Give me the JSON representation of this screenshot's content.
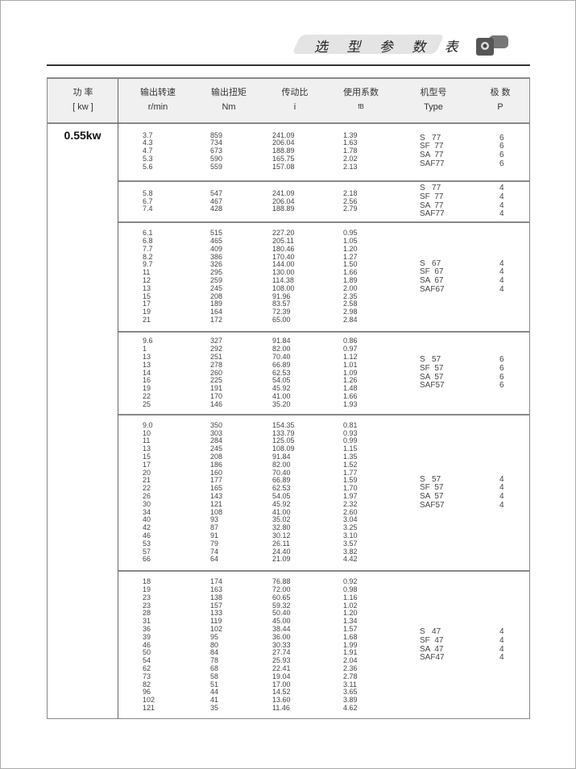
{
  "header": {
    "title": "选 型 参 数 表"
  },
  "columns": [
    {
      "cn": "功 率",
      "en": "[ kw ]"
    },
    {
      "cn": "输出转速",
      "en": "r/min"
    },
    {
      "cn": "输出扭矩",
      "en": "Nm"
    },
    {
      "cn": "传动比",
      "en": "i"
    },
    {
      "cn": "使用系数",
      "en": "fB"
    },
    {
      "cn": "机型号",
      "en": "Type"
    },
    {
      "cn": "极 数",
      "en": "P"
    }
  ],
  "power": "0.55kw",
  "groups": [
    {
      "rows": [
        [
          "3.7",
          "859",
          "241.09",
          "1.39"
        ],
        [
          "4.3",
          "734",
          "206.04",
          "1.63"
        ],
        [
          "4.7",
          "673",
          "188.89",
          "1.78"
        ],
        [
          "5.3",
          "590",
          "165.75",
          "2.02"
        ],
        [
          "5.6",
          "559",
          "157.08",
          "2.13"
        ]
      ],
      "types": [
        "S   77",
        "SF  77",
        "SA  77",
        "SAF77"
      ],
      "poles": [
        "6",
        "6",
        "6",
        "6"
      ]
    },
    {
      "rows": [
        [
          "5.8",
          "547",
          "241.09",
          "2.18"
        ],
        [
          "6.7",
          "467",
          "206.04",
          "2.56"
        ],
        [
          "7.4",
          "428",
          "188.89",
          "2.79"
        ]
      ],
      "types": [
        "S   77",
        "SF  77",
        "SA  77",
        "SAF77"
      ],
      "poles": [
        "4",
        "4",
        "4",
        "4"
      ]
    },
    {
      "rows": [
        [
          "6.1",
          "515",
          "227.20",
          "0.95"
        ],
        [
          "6.8",
          "465",
          "205.11",
          "1.05"
        ],
        [
          "7.7",
          "409",
          "180.46",
          "1.20"
        ],
        [
          "8.2",
          "386",
          "170.40",
          "1.27"
        ],
        [
          "9.7",
          "326",
          "144.00",
          "1.50"
        ],
        [
          "11",
          "295",
          "130.00",
          "1.66"
        ],
        [
          "12",
          "259",
          "114.38",
          "1.89"
        ],
        [
          "13",
          "245",
          "108.00",
          "2.00"
        ],
        [
          "15",
          "208",
          "91.96",
          "2.35"
        ],
        [
          "17",
          "189",
          "83.57",
          "2.58"
        ],
        [
          "19",
          "164",
          "72.39",
          "2.98"
        ],
        [
          "21",
          "172",
          "65.00",
          "2.84"
        ]
      ],
      "types": [
        "S   67",
        "SF  67",
        "SA  67",
        "SAF67"
      ],
      "poles": [
        "4",
        "4",
        "4",
        "4"
      ]
    },
    {
      "rows": [
        [
          "9.6",
          "327",
          "91.84",
          "0.86"
        ],
        [
          "1",
          "292",
          "82.00",
          "0.97"
        ],
        [
          "13",
          "251",
          "70.40",
          "1.12"
        ],
        [
          "13",
          "278",
          "66.89",
          "1.01"
        ],
        [
          "14",
          "260",
          "62.53",
          "1.09"
        ],
        [
          "16",
          "225",
          "54.05",
          "1.26"
        ],
        [
          "19",
          "191",
          "45.92",
          "1.48"
        ],
        [
          "22",
          "170",
          "41.00",
          "1.66"
        ],
        [
          "25",
          "146",
          "35.20",
          "1.93"
        ]
      ],
      "types": [
        "S   57",
        "SF  57",
        "SA  57",
        "SAF57"
      ],
      "poles": [
        "6",
        "6",
        "6",
        "6"
      ]
    },
    {
      "rows": [
        [
          "9.0",
          "350",
          "154.35",
          "0.81"
        ],
        [
          "10",
          "303",
          "133.79",
          "0.93"
        ],
        [
          "11",
          "284",
          "125.05",
          "0.99"
        ],
        [
          "13",
          "245",
          "108.09",
          "1.15"
        ],
        [
          "15",
          "208",
          "91.84",
          "1.35"
        ],
        [
          "17",
          "186",
          "82.00",
          "1.52"
        ],
        [
          "20",
          "160",
          "70.40",
          "1.77"
        ],
        [
          "21",
          "177",
          "66.89",
          "1.59"
        ],
        [
          "22",
          "165",
          "62.53",
          "1.70"
        ],
        [
          "26",
          "143",
          "54.05",
          "1.97"
        ],
        [
          "30",
          "121",
          "45.92",
          "2.32"
        ],
        [
          "34",
          "108",
          "41.00",
          "2.60"
        ],
        [
          "40",
          "93",
          "35.02",
          "3.04"
        ],
        [
          "42",
          "87",
          "32.80",
          "3.25"
        ],
        [
          "46",
          "91",
          "30.12",
          "3.10"
        ],
        [
          "53",
          "79",
          "26.11",
          "3.57"
        ],
        [
          "57",
          "74",
          "24.40",
          "3.82"
        ],
        [
          "66",
          "64",
          "21.09",
          "4.42"
        ]
      ],
      "types": [
        "S   57",
        "SF  57",
        "SA  57",
        "SAF57"
      ],
      "poles": [
        "4",
        "4",
        "4",
        "4"
      ]
    },
    {
      "rows": [
        [
          "18",
          "174",
          "76.88",
          "0.92"
        ],
        [
          "19",
          "163",
          "72.00",
          "0.98"
        ],
        [
          "23",
          "138",
          "60.65",
          "1.16"
        ],
        [
          "23",
          "157",
          "59.32",
          "1.02"
        ],
        [
          "28",
          "133",
          "50.40",
          "1.20"
        ],
        [
          "31",
          "119",
          "45.00",
          "1.34"
        ],
        [
          "36",
          "102",
          "38.44",
          "1.57"
        ],
        [
          "39",
          "95",
          "36.00",
          "1.68"
        ],
        [
          "46",
          "80",
          "30.33",
          "1.99"
        ],
        [
          "50",
          "84",
          "27.74",
          "1.91"
        ],
        [
          "54",
          "78",
          "25.93",
          "2.04"
        ],
        [
          "62",
          "68",
          "22.41",
          "2.36"
        ],
        [
          "73",
          "58",
          "19.04",
          "2.78"
        ],
        [
          "82",
          "51",
          "17.00",
          "3.11"
        ],
        [
          "96",
          "44",
          "14.52",
          "3.65"
        ],
        [
          "102",
          "41",
          "13.60",
          "3.89"
        ],
        [
          "121",
          "35",
          "11.46",
          "4.62"
        ]
      ],
      "types": [
        "S   47",
        "SF  47",
        "SA  47",
        "SAF47"
      ],
      "poles": [
        "4",
        "4",
        "4",
        "4"
      ]
    }
  ]
}
